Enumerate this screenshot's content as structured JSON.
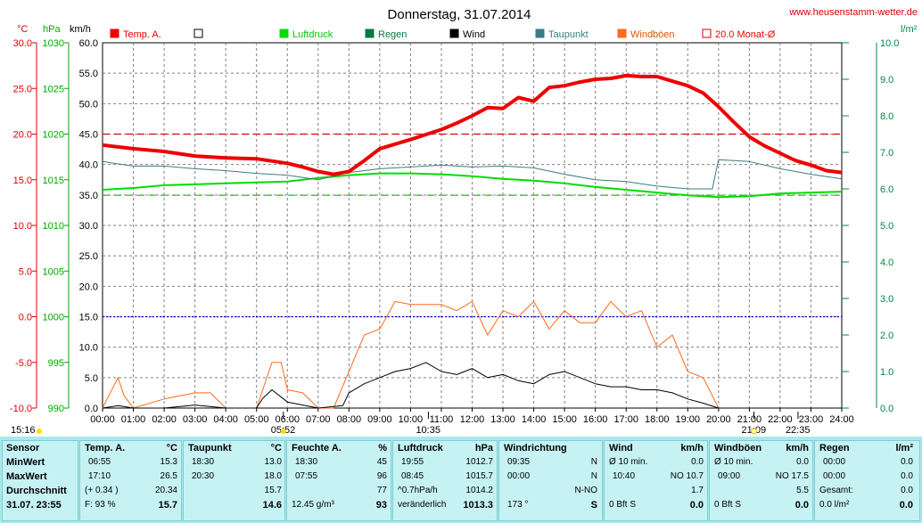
{
  "site": "www.heusenstamm-wetter.de",
  "chart_data": {
    "type": "line",
    "title": "Donnerstag, 31.07.2014",
    "axes": {
      "temp_unit": "°C",
      "temp_ticks": [
        "30.0",
        "25.0",
        "20.0",
        "15.0",
        "10.0",
        "5.0",
        "0.0",
        "-5.0",
        "-10.0"
      ],
      "press_unit": "hPa",
      "press_ticks": [
        "1030",
        "1025",
        "1020",
        "1015",
        "1010",
        "1005",
        "1000",
        "995",
        "990"
      ],
      "wind_unit": "km/h",
      "wind_ticks": [
        "60.0",
        "55.0",
        "50.0",
        "45.0",
        "40.0",
        "35.0",
        "30.0",
        "25.0",
        "20.0",
        "15.0",
        "10.0",
        "5.0",
        "0.0"
      ],
      "rain_unit": "l/m²",
      "rain_ticks": [
        "10.0",
        "9.0",
        "8.0",
        "7.0",
        "6.0",
        "5.0",
        "4.0",
        "3.0",
        "2.0",
        "1.0",
        "0.0"
      ],
      "x_ticks": [
        "00:00",
        "01:00",
        "02:00",
        "03:00",
        "04:00",
        "05:00",
        "06:00",
        "07:00",
        "08:00",
        "09:00",
        "10:00",
        "11:00",
        "12:00",
        "13:00",
        "14:00",
        "15:00",
        "16:00",
        "17:00",
        "18:00",
        "19:00",
        "20:00",
        "21:00",
        "22:00",
        "23:00",
        "24:00"
      ],
      "temp_range": [
        -10,
        30
      ],
      "press_range": [
        990,
        1030
      ],
      "wind_range": [
        0,
        60
      ],
      "rain_range": [
        0,
        10
      ]
    },
    "events": [
      {
        "label": "15:16",
        "x_hour": 15.27
      },
      {
        "label": "05:52",
        "x_hour": 5.87
      },
      {
        "label": "10:35",
        "x_hour": 10.58
      },
      {
        "label": "21:09",
        "x_hour": 21.15
      },
      {
        "label": "22:35",
        "x_hour": 22.58
      }
    ],
    "legend": [
      {
        "name": "Temp. A.",
        "color": "#ee0000"
      },
      {
        "name": "",
        "color": "#ffffff"
      },
      {
        "name": "Luftdruck",
        "color": "#00dd00"
      },
      {
        "name": "Regen",
        "color": "#007a3d"
      },
      {
        "name": "Wind",
        "color": "#000000"
      },
      {
        "name": "Taupunkt",
        "color": "#3b7b84"
      },
      {
        "name": "Windböen",
        "color": "#ff6a1e"
      },
      {
        "name": "20.0 Monat-Ø",
        "color": "#ee0000"
      }
    ],
    "reference_lines": [
      {
        "series": "Temp. A.",
        "value": 20.0,
        "color": "#dd0000"
      },
      {
        "series": "Luftdruck",
        "value": 1013.3,
        "color": "#00cc00"
      },
      {
        "series": "Temp. A.",
        "value": 0.0,
        "color": "#0000cc"
      }
    ],
    "series": [
      {
        "name": "Temp. A.",
        "color": "#ee0000",
        "unit": "°C",
        "x": [
          0,
          1,
          2,
          3,
          4,
          5,
          6,
          6.5,
          7,
          7.5,
          8,
          8.5,
          9,
          10,
          11,
          11.5,
          12,
          12.5,
          13,
          13.5,
          14,
          14.5,
          15,
          15.5,
          16,
          16.5,
          17,
          17.5,
          18,
          18.5,
          19,
          19.5,
          20,
          20.5,
          21,
          21.5,
          22,
          22.5,
          23,
          23.5,
          24
        ],
        "y": [
          18.8,
          18.4,
          18.1,
          17.6,
          17.4,
          17.3,
          16.8,
          16.4,
          15.9,
          15.6,
          15.9,
          17.1,
          18.4,
          19.4,
          20.5,
          21.2,
          22.0,
          22.9,
          22.8,
          24.0,
          23.6,
          25.1,
          25.3,
          25.7,
          26.0,
          26.1,
          26.4,
          26.3,
          26.3,
          25.8,
          25.3,
          24.5,
          23.0,
          21.3,
          19.7,
          18.7,
          17.9,
          17.1,
          16.6,
          16.0,
          15.8
        ]
      },
      {
        "name": "Taupunkt",
        "color": "#3b7b84",
        "unit": "°C",
        "x": [
          0,
          1,
          2,
          3,
          4,
          5,
          6,
          7,
          8,
          9,
          10,
          11,
          12,
          13,
          14,
          15,
          16,
          17,
          18,
          19,
          19.8,
          20,
          21,
          22,
          23,
          24
        ],
        "y": [
          17.0,
          16.5,
          16.5,
          16.2,
          16.0,
          15.7,
          15.5,
          15.0,
          15.8,
          16.2,
          16.4,
          16.6,
          16.4,
          16.5,
          16.3,
          15.6,
          15.0,
          14.8,
          14.3,
          14.0,
          14.0,
          17.2,
          17.0,
          16.2,
          15.6,
          15.1
        ]
      },
      {
        "name": "Luftdruck",
        "color": "#00dd00",
        "unit": "hPa",
        "x": [
          0,
          1,
          2,
          3,
          4,
          5,
          6,
          7,
          8,
          9,
          10,
          11,
          12,
          13,
          14,
          15,
          16,
          17,
          18,
          19,
          20,
          21,
          22,
          23,
          24
        ],
        "y": [
          1013.9,
          1014.1,
          1014.4,
          1014.5,
          1014.6,
          1014.7,
          1014.8,
          1015.2,
          1015.5,
          1015.7,
          1015.7,
          1015.6,
          1015.4,
          1015.1,
          1014.9,
          1014.6,
          1014.2,
          1013.9,
          1013.6,
          1013.3,
          1013.1,
          1013.2,
          1013.5,
          1013.6,
          1013.7
        ]
      },
      {
        "name": "Wind",
        "color": "#000000",
        "unit": "km/h",
        "x": [
          0,
          0.5,
          1,
          2,
          3,
          4,
          5,
          5.2,
          5.5,
          6,
          7,
          7.8,
          8,
          8.5,
          9,
          9.5,
          10,
          10.5,
          11,
          11.5,
          12,
          12.5,
          13,
          13.5,
          14,
          14.5,
          15,
          15.5,
          16,
          16.5,
          17,
          17.5,
          18,
          18.5,
          19,
          19.5,
          20,
          21,
          22,
          23,
          24
        ],
        "y": [
          0,
          0.4,
          0,
          0,
          0.5,
          0,
          0,
          1.6,
          3.0,
          1.0,
          0,
          0.4,
          2.5,
          4.0,
          5.0,
          6.0,
          6.5,
          7.5,
          6.0,
          5.5,
          6.5,
          5.0,
          5.5,
          4.5,
          4.0,
          5.5,
          6.0,
          5.0,
          4.0,
          3.5,
          3.5,
          3.0,
          3.0,
          2.5,
          1.5,
          0.8,
          0,
          0,
          0,
          0,
          0
        ]
      },
      {
        "name": "Windböen",
        "color": "#ff6a1e",
        "unit": "km/h",
        "x": [
          0,
          0.5,
          0.7,
          1,
          2,
          3,
          3.5,
          4,
          5,
          5.5,
          5.8,
          6,
          6.5,
          7,
          7.5,
          8,
          8.5,
          9,
          9.5,
          10,
          10.5,
          11,
          11.5,
          12,
          12.5,
          13,
          13.5,
          14,
          14.5,
          15,
          15.5,
          16,
          16.5,
          17,
          17.5,
          18,
          18.5,
          19,
          19.5,
          20,
          21,
          22,
          23,
          24
        ],
        "y": [
          0,
          5,
          2,
          0,
          1.5,
          2.5,
          2.5,
          0,
          0,
          7.5,
          7.5,
          3,
          2.5,
          0,
          0,
          6,
          12,
          13,
          17.5,
          17,
          17,
          17,
          16,
          17.5,
          12,
          16,
          15,
          17.5,
          13,
          16,
          14,
          14,
          17.5,
          15,
          16,
          10,
          12,
          6,
          5,
          0,
          0,
          0,
          0,
          0
        ]
      }
    ]
  },
  "panel": {
    "headers": {
      "sensor": "Sensor",
      "temp": "Temp. A.",
      "temp_unit": "°C",
      "dew": "Taupunkt",
      "dew_unit": "°C",
      "hum": "Feuchte A.",
      "hum_unit": "%",
      "press": "Luftdruck",
      "press_unit": "hPa",
      "dir": "Windrichtung",
      "wind": "Wind",
      "wind_unit": "km/h",
      "gust": "Windböen",
      "gust_unit": "km/h",
      "rain": "Regen",
      "rain_unit": "l/m²"
    },
    "rows": {
      "min": "MinWert",
      "max": "MaxWert",
      "avg": "Durchschnitt",
      "now": "31.07. 23:55"
    },
    "temp": {
      "min_t": "06:55",
      "min_v": "15.3",
      "max_t": "17:10",
      "max_v": "26.5",
      "avg_l": "(+ 0.34 )",
      "avg_v": "20.34",
      "now_l": "F: 93 %",
      "now_v": "15.7"
    },
    "dew": {
      "min_t": "18:30",
      "min_v": "13.0",
      "max_t": "20:30",
      "max_v": "18.0",
      "avg_v": "15.7",
      "now_v": "14.6"
    },
    "hum": {
      "min_t": "18:30",
      "min_v": "45",
      "max_t": "07:55",
      "max_v": "96",
      "avg_v": "77",
      "now_l": "12.45 g/m³",
      "now_v": "93"
    },
    "press": {
      "min_t": "19:55",
      "min_v": "1012.7",
      "max_t": "08:45",
      "max_v": "1015.7",
      "avg_l": "^0.7hPa/h",
      "avg_v": "1014.2",
      "now_l": "veränderlich",
      "now_v": "1013.3"
    },
    "dir": {
      "min_t": "09:35",
      "min_v": "N",
      "max_t": "00:00",
      "max_v": "N",
      "avg_v": "N-NO",
      "now_l": "173 °",
      "now_v": "S"
    },
    "wind": {
      "min_l": "Ø 10 min.",
      "min_v": "0.0",
      "max_t": "10:40",
      "max_v": "NO 10.7",
      "avg_v": "1.7",
      "now_l": "0 Bft S",
      "now_v": "0.0"
    },
    "gust": {
      "min_l": "Ø 10 min.",
      "min_v": "0.0",
      "max_t": "09:00",
      "max_v": "NO 17.5",
      "avg_v": "5.5",
      "now_l": "0 Bft S",
      "now_v": "0.0"
    },
    "rain": {
      "min_t": "00:00",
      "min_v": "0.0",
      "max_t": "00:00",
      "max_v": "0.0",
      "avg_l": "Gesamt:",
      "avg_v": "0.0",
      "now_l": "0.0 l/m²",
      "now_v": "0.0"
    }
  }
}
